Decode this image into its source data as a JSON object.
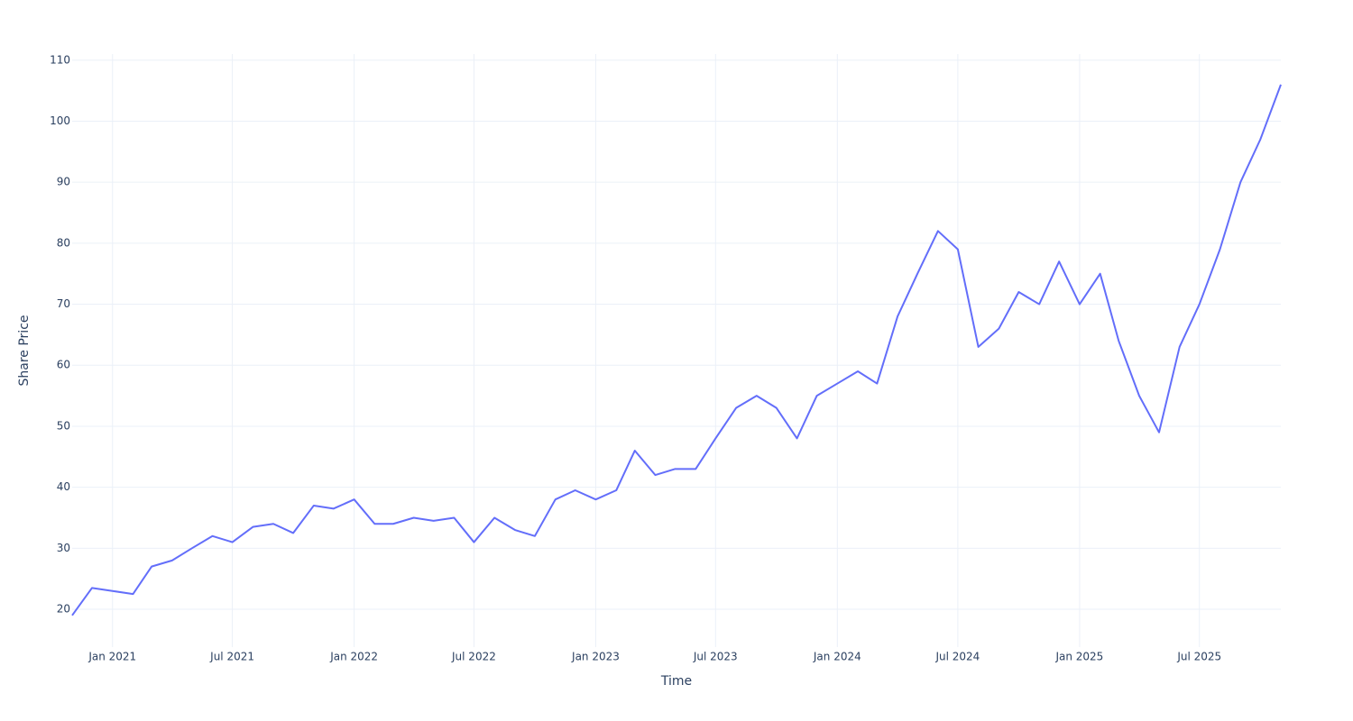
{
  "chart_data": {
    "type": "line",
    "x_label": "Time",
    "y_label": "Share Price",
    "x": [
      "2020-11",
      "2020-12",
      "2021-01",
      "2021-02",
      "2021-03",
      "2021-04",
      "2021-05",
      "2021-06",
      "2021-07",
      "2021-08",
      "2021-09",
      "2021-10",
      "2021-11",
      "2021-12",
      "2022-01",
      "2022-02",
      "2022-03",
      "2022-04",
      "2022-05",
      "2022-06",
      "2022-07",
      "2022-08",
      "2022-09",
      "2022-10",
      "2022-11",
      "2022-12",
      "2023-01",
      "2023-02",
      "2023-03",
      "2023-04",
      "2023-05",
      "2023-06",
      "2023-07",
      "2023-08",
      "2023-09",
      "2023-10",
      "2023-11",
      "2023-12",
      "2024-01",
      "2024-02",
      "2024-03",
      "2024-04",
      "2024-05",
      "2024-06",
      "2024-07",
      "2024-08",
      "2024-09",
      "2024-10",
      "2024-11",
      "2024-12",
      "2025-01",
      "2025-02",
      "2025-03",
      "2025-04",
      "2025-05",
      "2025-06",
      "2025-07",
      "2025-08",
      "2025-09",
      "2025-10",
      "2025-11"
    ],
    "series": [
      {
        "name": "Share Price",
        "color": "#636efa",
        "values": [
          19,
          23.5,
          23,
          22.5,
          27,
          28,
          30,
          32,
          31,
          33.5,
          34,
          32.5,
          37,
          36.5,
          38,
          34,
          34,
          35,
          34.5,
          35,
          31,
          35,
          33,
          32,
          38,
          39.5,
          38,
          39.5,
          46,
          42,
          43,
          43,
          48,
          53,
          55,
          53,
          48,
          55,
          57,
          59,
          57,
          68,
          75,
          82,
          79,
          63,
          66,
          72,
          70,
          77,
          70,
          75,
          64,
          55,
          49,
          63,
          70,
          79,
          90,
          97,
          106
        ]
      }
    ],
    "xlim": [
      "2020-11",
      "2025-11"
    ],
    "xticks": [
      {
        "value": "2021-01",
        "label": "Jan 2021"
      },
      {
        "value": "2021-07",
        "label": "Jul 2021"
      },
      {
        "value": "2022-01",
        "label": "Jan 2022"
      },
      {
        "value": "2022-07",
        "label": "Jul 2022"
      },
      {
        "value": "2023-01",
        "label": "Jan 2023"
      },
      {
        "value": "2023-07",
        "label": "Jul 2023"
      },
      {
        "value": "2024-01",
        "label": "Jan 2024"
      },
      {
        "value": "2024-07",
        "label": "Jul 2024"
      },
      {
        "value": "2025-01",
        "label": "Jan 2025"
      },
      {
        "value": "2025-07",
        "label": "Jul 2025"
      }
    ],
    "ylim": [
      13.8,
      111
    ],
    "yticks": [
      20,
      30,
      40,
      50,
      60,
      70,
      80,
      90,
      100,
      110
    ],
    "grid": true
  }
}
